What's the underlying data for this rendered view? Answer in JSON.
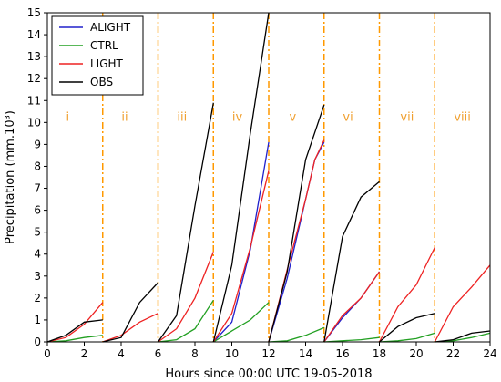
{
  "chart_data": {
    "type": "line",
    "title": "",
    "xlabel": "Hours since 00:00 UTC 19-05-2018",
    "ylabel": "Precipitation (mm.10³)",
    "xlim": [
      0,
      24
    ],
    "ylim": [
      0,
      15
    ],
    "xticks": [
      0,
      2,
      4,
      6,
      8,
      10,
      12,
      14,
      16,
      18,
      20,
      22,
      24
    ],
    "yticks": [
      0,
      1,
      2,
      3,
      4,
      5,
      6,
      7,
      8,
      9,
      10,
      11,
      12,
      13,
      14,
      15
    ],
    "grid": false,
    "legend_position": "top-left",
    "period_boundaries": [
      3,
      6,
      9,
      12,
      15,
      18,
      21
    ],
    "boundary_color": "#ff9900",
    "periods": [
      {
        "label": "i",
        "x": 1.1
      },
      {
        "label": "ii",
        "x": 4.2
      },
      {
        "label": "iii",
        "x": 7.3
      },
      {
        "label": "iv",
        "x": 10.3
      },
      {
        "label": "v",
        "x": 13.3
      },
      {
        "label": "vi",
        "x": 16.3
      },
      {
        "label": "vii",
        "x": 19.5
      },
      {
        "label": "viii",
        "x": 22.5
      }
    ],
    "period_label_y": 10.25,
    "series": [
      {
        "name": "ALIGHT",
        "color": "#2020cc",
        "segments": [
          [
            [
              9,
              0
            ],
            [
              10,
              0.9
            ],
            [
              11,
              4.2
            ],
            [
              12,
              9.1
            ]
          ],
          [
            [
              12,
              0
            ],
            [
              13,
              2.9
            ],
            [
              14,
              6.5
            ],
            [
              14.5,
              8.3
            ],
            [
              15,
              9.1
            ]
          ],
          [
            [
              15,
              0
            ],
            [
              16,
              1.1
            ],
            [
              17,
              2.0
            ],
            [
              18,
              3.2
            ]
          ]
        ]
      },
      {
        "name": "CTRL",
        "color": "#22a022",
        "segments": [
          [
            [
              0,
              0
            ],
            [
              1,
              0.05
            ],
            [
              2,
              0.2
            ],
            [
              3,
              0.3
            ]
          ],
          [
            [
              6,
              0
            ],
            [
              7,
              0.1
            ],
            [
              8,
              0.6
            ],
            [
              9,
              1.9
            ]
          ],
          [
            [
              9,
              0
            ],
            [
              11,
              1.0
            ],
            [
              12,
              1.8
            ]
          ],
          [
            [
              12,
              0
            ],
            [
              13,
              0.05
            ],
            [
              14,
              0.3
            ],
            [
              15,
              0.65
            ]
          ],
          [
            [
              15,
              0
            ],
            [
              16,
              0.05
            ],
            [
              17,
              0.1
            ],
            [
              18,
              0.2
            ]
          ],
          [
            [
              18,
              0
            ],
            [
              19,
              0.05
            ],
            [
              20,
              0.15
            ],
            [
              21,
              0.4
            ]
          ],
          [
            [
              21,
              0
            ],
            [
              22,
              0.05
            ],
            [
              23,
              0.2
            ],
            [
              24,
              0.4
            ]
          ]
        ]
      },
      {
        "name": "LIGHT",
        "color": "#ee2222",
        "segments": [
          [
            [
              0,
              0
            ],
            [
              1,
              0.2
            ],
            [
              2,
              0.8
            ],
            [
              3,
              1.8
            ]
          ],
          [
            [
              3,
              0
            ],
            [
              4,
              0.3
            ],
            [
              5,
              0.9
            ],
            [
              6,
              1.3
            ]
          ],
          [
            [
              6,
              0
            ],
            [
              7,
              0.6
            ],
            [
              8,
              2.0
            ],
            [
              9,
              4.1
            ]
          ],
          [
            [
              9,
              0
            ],
            [
              10,
              1.3
            ],
            [
              11,
              4.3
            ],
            [
              12,
              7.8
            ]
          ],
          [
            [
              12,
              0
            ],
            [
              13,
              3.3
            ],
            [
              14,
              6.5
            ],
            [
              14.5,
              8.3
            ],
            [
              15,
              9.2
            ]
          ],
          [
            [
              15,
              0
            ],
            [
              16,
              1.2
            ],
            [
              17,
              2.0
            ],
            [
              18,
              3.2
            ]
          ],
          [
            [
              18,
              0
            ],
            [
              19,
              1.6
            ],
            [
              20,
              2.6
            ],
            [
              21,
              4.3
            ]
          ],
          [
            [
              21,
              0
            ],
            [
              22,
              1.6
            ],
            [
              23,
              2.5
            ],
            [
              24,
              3.5
            ]
          ]
        ]
      },
      {
        "name": "OBS",
        "color": "#000000",
        "segments": [
          [
            [
              0,
              0
            ],
            [
              1,
              0.3
            ],
            [
              2,
              0.9
            ],
            [
              3,
              1.0
            ]
          ],
          [
            [
              3,
              0
            ],
            [
              4,
              0.2
            ],
            [
              5,
              1.8
            ],
            [
              6,
              2.7
            ]
          ],
          [
            [
              6,
              0
            ],
            [
              7,
              1.2
            ],
            [
              8,
              6.2
            ],
            [
              9,
              10.9
            ]
          ],
          [
            [
              9,
              0
            ],
            [
              10,
              3.5
            ],
            [
              11,
              9.5
            ],
            [
              12,
              15
            ]
          ],
          [
            [
              12,
              0
            ],
            [
              13,
              3.2
            ],
            [
              14,
              8.3
            ],
            [
              15,
              10.8
            ]
          ],
          [
            [
              15,
              0
            ],
            [
              16,
              4.8
            ],
            [
              17,
              6.6
            ],
            [
              18,
              7.3
            ]
          ],
          [
            [
              18,
              0
            ],
            [
              19,
              0.7
            ],
            [
              20,
              1.1
            ],
            [
              21,
              1.3
            ]
          ],
          [
            [
              21,
              0
            ],
            [
              22,
              0.1
            ],
            [
              23,
              0.4
            ],
            [
              24,
              0.5
            ]
          ]
        ]
      }
    ]
  }
}
